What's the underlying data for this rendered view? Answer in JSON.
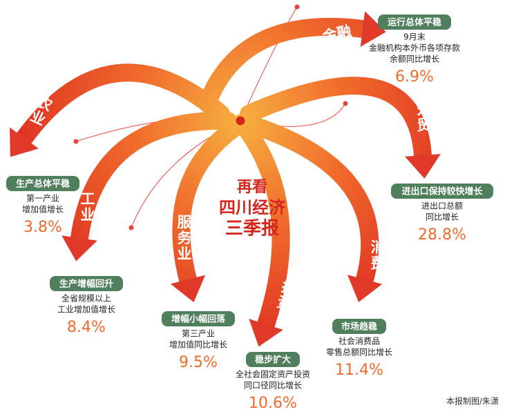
{
  "center_title": [
    "再看",
    "四川经济",
    "三季报"
  ],
  "sectors": [
    {
      "arrow_label": "金融",
      "tag": "运行总体平稳",
      "description": [
        "9月末",
        "金融机构本外币各项存款",
        "余额同比增长"
      ],
      "value": "6.9%"
    },
    {
      "arrow_label": "外贸",
      "tag": "进出口保持较快增长",
      "description": [
        "进出口总额",
        "同比增长"
      ],
      "value": "28.8%"
    },
    {
      "arrow_label": "消费",
      "tag": "市场趋稳",
      "description": [
        "社会消费品",
        "零售总额同比增长"
      ],
      "value": "11.4%"
    },
    {
      "arrow_label": "投资",
      "tag": "稳步扩大",
      "description": [
        "全社会固定资产投资",
        "同口径同比增长"
      ],
      "value": "10.6%"
    },
    {
      "arrow_label": "服务业",
      "tag": "增幅小幅回落",
      "description": [
        "第三产业",
        "增加值同比增长"
      ],
      "value": "9.5%"
    },
    {
      "arrow_label": "工业",
      "tag": "生产增幅回升",
      "description": [
        "全省规模以上",
        "工业增加值增长"
      ],
      "value": "8.4%"
    },
    {
      "arrow_label": "农业",
      "tag": "生产总体平稳",
      "description": [
        "第一产业",
        "增加值增长"
      ],
      "value": "3.8%"
    }
  ],
  "credit": "本报制图/朱潇"
}
